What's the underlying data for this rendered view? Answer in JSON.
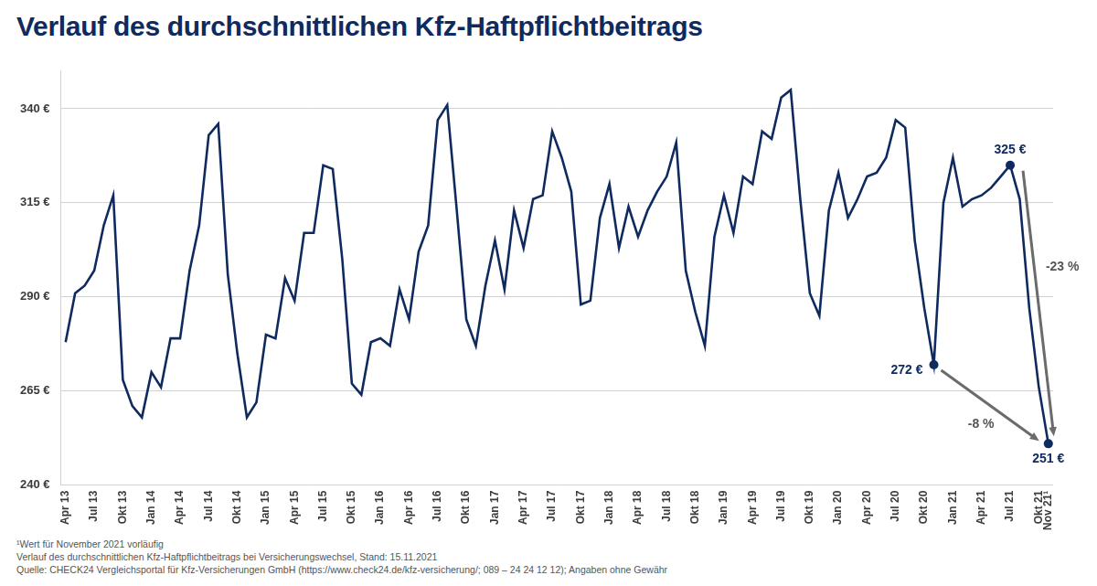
{
  "chart_data": {
    "type": "line",
    "title": "Verlauf des durchschnittlichen Kfz-Haftpflichtbeitrags",
    "categories": [
      "Apr 13",
      null,
      null,
      "Jul 13",
      null,
      null,
      "Okt 13",
      null,
      null,
      "Jan 14",
      null,
      null,
      "Apr 14",
      null,
      null,
      "Jul 14",
      null,
      null,
      "Okt 14",
      null,
      null,
      "Jan 15",
      null,
      null,
      "Apr 15",
      null,
      null,
      "Jul 15",
      null,
      null,
      "Okt 15",
      null,
      null,
      "Jan 16",
      null,
      null,
      "Apr 16",
      null,
      null,
      "Jul 16",
      null,
      null,
      "Okt 16",
      null,
      null,
      "Jan 17",
      null,
      null,
      "Apr 17",
      null,
      null,
      "Jul 17",
      null,
      null,
      "Okt 17",
      null,
      null,
      "Jan 18",
      null,
      null,
      "Apr 18",
      null,
      null,
      "Jul 18",
      null,
      null,
      "Okt 18",
      null,
      null,
      "Jan 19",
      null,
      null,
      "Apr 19",
      null,
      null,
      "Jul 19",
      null,
      null,
      "Okt 19",
      null,
      null,
      "Jan 20",
      null,
      null,
      "Apr 20",
      null,
      null,
      "Jul 20",
      null,
      null,
      "Okt 20",
      null,
      null,
      "Jan 21",
      null,
      null,
      "Apr 21",
      null,
      null,
      "Jul 21",
      null,
      null,
      "Okt 21",
      "Nov 21¹"
    ],
    "values": [
      278,
      291,
      293,
      297,
      309,
      317,
      268,
      261,
      258,
      270,
      266,
      279,
      279,
      297,
      309,
      333,
      336,
      296,
      275,
      258,
      262,
      280,
      279,
      295,
      289,
      307,
      307,
      325,
      324,
      300,
      267,
      264,
      278,
      279,
      277,
      292,
      284,
      302,
      309,
      337,
      341,
      313,
      284,
      277,
      293,
      305,
      292,
      313,
      303,
      316,
      317,
      334,
      327,
      318,
      288,
      289,
      311,
      320,
      303,
      314,
      306,
      313,
      318,
      322,
      331,
      297,
      286,
      277,
      306,
      317,
      307,
      322,
      320,
      334,
      332,
      343,
      345,
      316,
      291,
      285,
      313,
      323,
      311,
      316,
      322,
      323,
      327,
      337,
      335,
      305,
      287,
      272,
      315,
      327,
      314,
      316,
      317,
      319,
      322,
      325,
      316,
      287,
      266,
      251
    ],
    "color": "#0e2a5e",
    "ylim": [
      240,
      350
    ],
    "yticks": [
      {
        "value": 240,
        "label": "240 €"
      },
      {
        "value": 265,
        "label": "265 €"
      },
      {
        "value": 290,
        "label": "290 €"
      },
      {
        "value": 315,
        "label": "315 €"
      },
      {
        "value": 340,
        "label": "340 €"
      }
    ],
    "grid": true,
    "annotations": [
      {
        "text": "325 €",
        "value": 325
      },
      {
        "text": "272 €",
        "value": 272
      },
      {
        "text": "251 €",
        "value": 251
      },
      {
        "text": "-8 %",
        "from": 272,
        "to": 251
      },
      {
        "text": "-23 %",
        "from": 325,
        "to": 251
      }
    ],
    "notes": [
      "¹Wert für November 2021 vorläufig",
      "Verlauf des durchschnittlichen Kfz-Haftpflichtbeitrags bei Versicherungswechsel, Stand: 15.11.2021",
      "Quelle: CHECK24 Vergleichsportal für Kfz-Versicherungen GmbH (https://www.check24.de/kfz-versicherung/; 089 – 24 24 12 12); Angaben ohne Gewähr"
    ]
  }
}
